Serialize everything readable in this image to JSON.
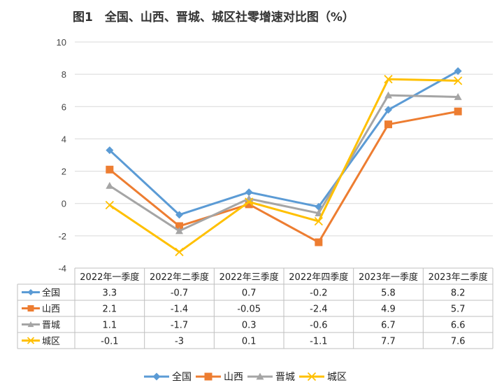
{
  "title": "图1　全国、山西、晋城、城区社零增速对比图（%）",
  "colors": {
    "全国": "#5B9BD5",
    "山西": "#ED7D31",
    "晋城": "#A5A5A5",
    "城区": "#FFC000",
    "grid": "#d9d9d9"
  },
  "chart_data": {
    "type": "line",
    "title": "图1　全国、山西、晋城、城区社零增速对比图（%）",
    "categories": [
      "2022年一季度",
      "2022年二季度",
      "2022年三季度",
      "2022年四季度",
      "2023年一季度",
      "2023年二季度"
    ],
    "ylim": [
      -4,
      10
    ],
    "yticks": [
      -4,
      -2,
      0,
      2,
      4,
      6,
      8,
      10
    ],
    "grid": true,
    "legend": "bottom",
    "data_table": true,
    "series": [
      {
        "name": "全国",
        "marker": "diamond",
        "values": [
          3.3,
          -0.7,
          0.7,
          -0.2,
          5.8,
          8.2
        ],
        "labels": [
          "3.3",
          "-0.7",
          "0.7",
          "-0.2",
          "5.8",
          "8.2"
        ]
      },
      {
        "name": "山西",
        "marker": "square",
        "values": [
          2.1,
          -1.4,
          -0.05,
          -2.4,
          4.9,
          5.7
        ],
        "labels": [
          "2.1",
          "-1.4",
          "-0.05",
          "-2.4",
          "4.9",
          "5.7"
        ]
      },
      {
        "name": "晋城",
        "marker": "triangle",
        "values": [
          1.1,
          -1.7,
          0.3,
          -0.6,
          6.7,
          6.6
        ],
        "labels": [
          "1.1",
          "-1.7",
          "0.3",
          "-0.6",
          "6.7",
          "6.6"
        ]
      },
      {
        "name": "城区",
        "marker": "x",
        "values": [
          -0.1,
          -3,
          0.1,
          -1.1,
          7.7,
          7.6
        ],
        "labels": [
          "-0.1",
          "-3",
          "0.1",
          "-1.1",
          "7.7",
          "7.6"
        ]
      }
    ]
  }
}
